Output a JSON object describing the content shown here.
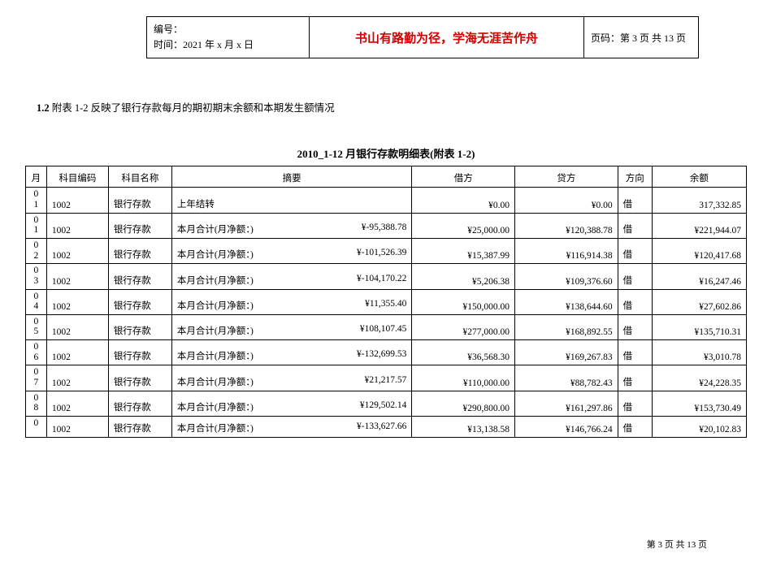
{
  "header": {
    "serial_label": "编号：",
    "time_label": "时间：",
    "time_value": "2021 年 x 月 x 日",
    "center_text": "书山有路勤为径，学海无涯苦作舟",
    "page_label": "页码：第 3 页  共 13 页"
  },
  "section": {
    "prefix": "1.2",
    "text": "附表 1-2 反映了银行存款每月的期初期末余额和本期发生额情况"
  },
  "table": {
    "title": "2010_1-12 月银行存款明细表(附表 1-2)",
    "columns": [
      "月",
      "科目编码",
      "科目名称",
      "摘要",
      "借方",
      "贷方",
      "方向",
      "余额"
    ],
    "rows": [
      {
        "month": "01",
        "code": "1002",
        "name": "银行存款",
        "summary_l": "上年结转",
        "summary_r": "",
        "debit": "¥0.00",
        "credit": "¥0.00",
        "dir": "借",
        "balance": "317,332.85"
      },
      {
        "month": "01",
        "code": "1002",
        "name": "银行存款",
        "summary_l": "本月合计(月净额：)",
        "summary_r": "¥-95,388.78",
        "debit": "¥25,000.00",
        "credit": "¥120,388.78",
        "dir": "借",
        "balance": "¥221,944.07"
      },
      {
        "month": "02",
        "code": "1002",
        "name": "银行存款",
        "summary_l": "本月合计(月净额：)",
        "summary_r": "¥-101,526.39",
        "debit": "¥15,387.99",
        "credit": "¥116,914.38",
        "dir": "借",
        "balance": "¥120,417.68"
      },
      {
        "month": "03",
        "code": "1002",
        "name": "银行存款",
        "summary_l": "本月合计(月净额：)",
        "summary_r": "¥-104,170.22",
        "debit": "¥5,206.38",
        "credit": "¥109,376.60",
        "dir": "借",
        "balance": "¥16,247.46"
      },
      {
        "month": "04",
        "code": "1002",
        "name": "银行存款",
        "summary_l": "本月合计(月净额：)",
        "summary_r": "¥11,355.40",
        "debit": "¥150,000.00",
        "credit": "¥138,644.60",
        "dir": "借",
        "balance": "¥27,602.86"
      },
      {
        "month": "05",
        "code": "1002",
        "name": "银行存款",
        "summary_l": "本月合计(月净额：)",
        "summary_r": "¥108,107.45",
        "debit": "¥277,000.00",
        "credit": "¥168,892.55",
        "dir": "借",
        "balance": "¥135,710.31"
      },
      {
        "month": "06",
        "code": "1002",
        "name": "银行存款",
        "summary_l": "本月合计(月净额：)",
        "summary_r": "¥-132,699.53",
        "debit": "¥36,568.30",
        "credit": "¥169,267.83",
        "dir": "借",
        "balance": "¥3,010.78"
      },
      {
        "month": "07",
        "code": "1002",
        "name": "银行存款",
        "summary_l": "本月合计(月净额：)",
        "summary_r": "¥21,217.57",
        "debit": "¥110,000.00",
        "credit": "¥88,782.43",
        "dir": "借",
        "balance": "¥24,228.35"
      },
      {
        "month": "08",
        "code": "1002",
        "name": "银行存款",
        "summary_l": "本月合计(月净额：)",
        "summary_r": "¥129,502.14",
        "debit": "¥290,800.00",
        "credit": "¥161,297.86",
        "dir": "借",
        "balance": "¥153,730.49"
      },
      {
        "month": "0",
        "code": "1002",
        "name": "银行存款",
        "summary_l": "本月合计(月净额：)",
        "summary_r": "¥-133,627.66",
        "debit": "¥13,138.58",
        "credit": "¥146,766.24",
        "dir": "借",
        "balance": "¥20,102.83"
      }
    ]
  },
  "footer": {
    "page_text": "第 3 页 共 13 页"
  }
}
